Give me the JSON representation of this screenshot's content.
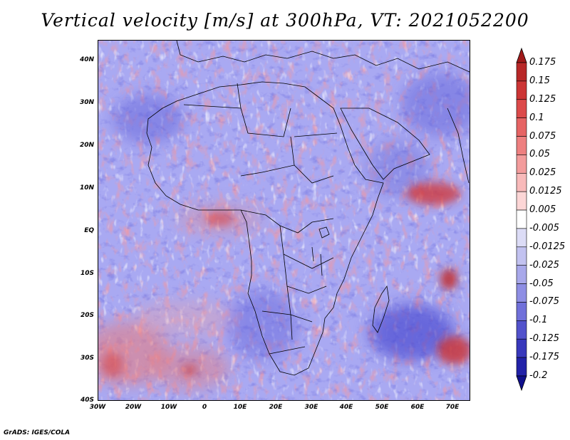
{
  "title": "Vertical velocity [m/s] at 300hPa, VT: 2021052200",
  "footer": "GrADS: IGES/COLA",
  "colors": {
    "background_field": "#a9a9f2",
    "positive": "#e03a3a",
    "negative": "#3535c8",
    "coastline": "#000000"
  },
  "chart_data": {
    "type": "heatmap",
    "title": "Vertical velocity [m/s] at 300hPa, VT: 2021052200",
    "x_ticks": [
      "30W",
      "20W",
      "10W",
      "0",
      "10E",
      "20E",
      "30E",
      "40E",
      "50E",
      "60E",
      "70E"
    ],
    "y_ticks": [
      "40N",
      "30N",
      "20N",
      "10N",
      "EQ",
      "10S",
      "20S",
      "30S",
      "40S"
    ],
    "xlim": [
      -30,
      75
    ],
    "ylim": [
      -40,
      44
    ],
    "colorbar": {
      "levels": [
        "0.175",
        "0.15",
        "0.125",
        "0.1",
        "0.075",
        "0.05",
        "0.025",
        "0.0125",
        "0.005",
        "-0.005",
        "-0.0125",
        "-0.025",
        "-0.05",
        "-0.075",
        "-0.1",
        "-0.125",
        "-0.175",
        "-0.2"
      ],
      "colors": [
        "#a01a1a",
        "#b82828",
        "#cc3535",
        "#dc4a4a",
        "#e66464",
        "#ee8080",
        "#f39c9c",
        "#f8baba",
        "#fcd6d6",
        "#ffffff",
        "#dcdcf6",
        "#c2c2f0",
        "#a8a8ea",
        "#8e8ee4",
        "#7070da",
        "#5252cc",
        "#3838bc",
        "#2222a8",
        "#10108c"
      ]
    }
  }
}
